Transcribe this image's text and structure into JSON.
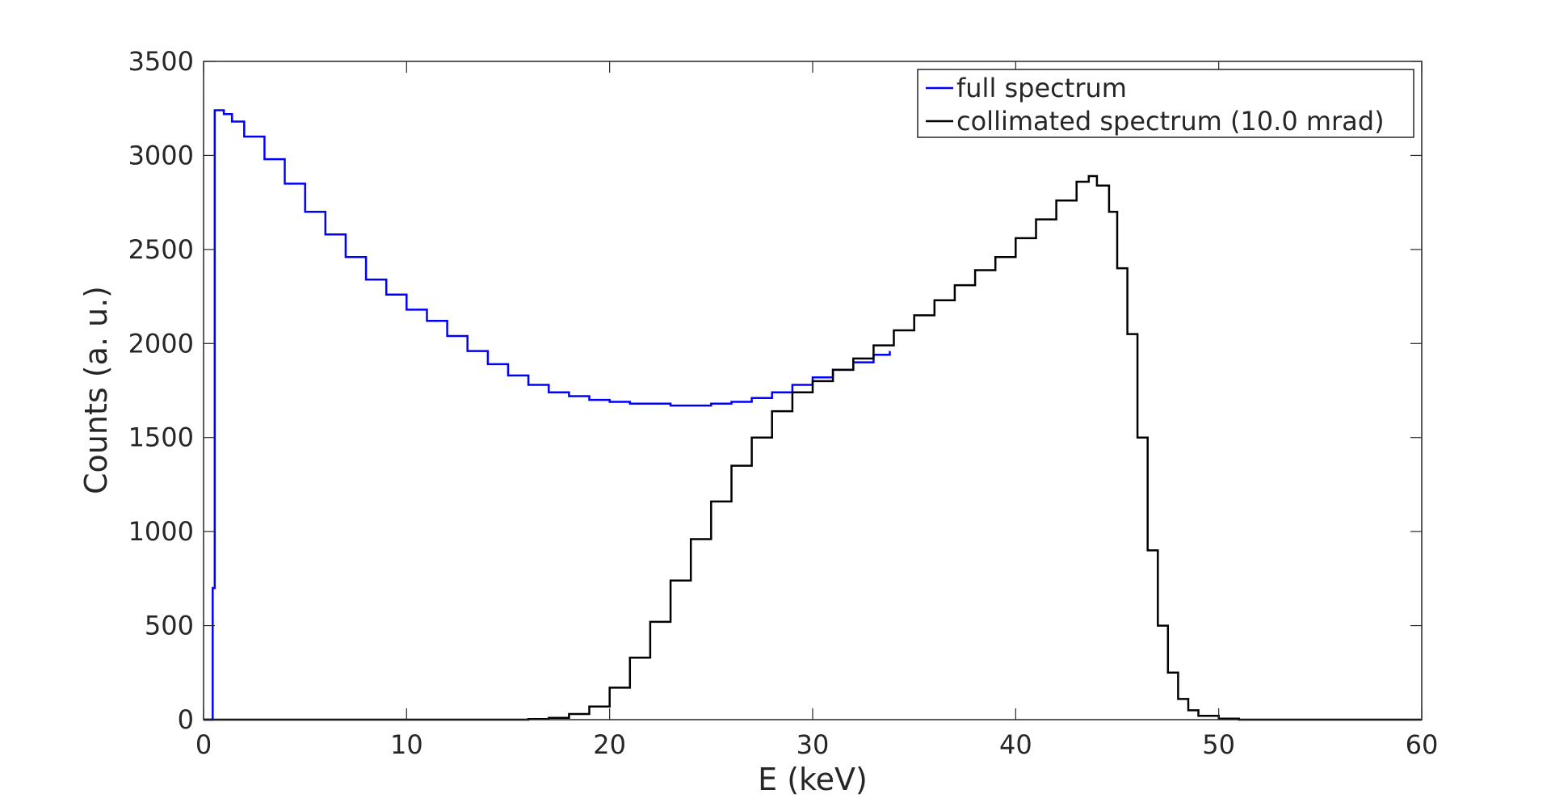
{
  "chart_data": {
    "type": "line",
    "title": "",
    "xlabel": "E (keV)",
    "ylabel": "Counts (a. u.)",
    "xlim": [
      0,
      60
    ],
    "ylim": [
      0,
      3500
    ],
    "xticks": [
      0,
      10,
      20,
      30,
      40,
      50,
      60
    ],
    "yticks": [
      0,
      500,
      1000,
      1500,
      2000,
      2500,
      3000,
      3500
    ],
    "grid": false,
    "legend_position": "top-right",
    "series": [
      {
        "name": "full spectrum",
        "color": "#0000ff",
        "style": "stairs",
        "points": [
          [
            0,
            0
          ],
          [
            0.4,
            0
          ],
          [
            0.45,
            700
          ],
          [
            0.55,
            3240
          ],
          [
            1.0,
            3220
          ],
          [
            1.4,
            3180
          ],
          [
            2.0,
            3100
          ],
          [
            3.0,
            2980
          ],
          [
            4.0,
            2850
          ],
          [
            5.0,
            2700
          ],
          [
            6.0,
            2580
          ],
          [
            7.0,
            2460
          ],
          [
            8.0,
            2340
          ],
          [
            9.0,
            2260
          ],
          [
            10.0,
            2180
          ],
          [
            11.0,
            2120
          ],
          [
            12.0,
            2040
          ],
          [
            13.0,
            1960
          ],
          [
            14.0,
            1890
          ],
          [
            15.0,
            1830
          ],
          [
            16.0,
            1780
          ],
          [
            17.0,
            1740
          ],
          [
            18.0,
            1720
          ],
          [
            19.0,
            1700
          ],
          [
            20.0,
            1690
          ],
          [
            21.0,
            1680
          ],
          [
            22.0,
            1680
          ],
          [
            23.0,
            1670
          ],
          [
            24.0,
            1670
          ],
          [
            25.0,
            1680
          ],
          [
            26.0,
            1690
          ],
          [
            27.0,
            1710
          ],
          [
            28.0,
            1740
          ],
          [
            29.0,
            1780
          ],
          [
            30.0,
            1820
          ],
          [
            31.0,
            1860
          ],
          [
            32.0,
            1900
          ],
          [
            33.0,
            1940
          ],
          [
            33.8,
            1960
          ]
        ]
      },
      {
        "name": "collimated spectrum (10.0 mrad)",
        "color": "#000000",
        "style": "stairs",
        "points": [
          [
            0,
            0
          ],
          [
            15.0,
            0
          ],
          [
            16.0,
            3
          ],
          [
            17.0,
            10
          ],
          [
            18.0,
            30
          ],
          [
            19.0,
            70
          ],
          [
            20.0,
            170
          ],
          [
            21.0,
            330
          ],
          [
            22.0,
            520
          ],
          [
            23.0,
            740
          ],
          [
            24.0,
            960
          ],
          [
            25.0,
            1160
          ],
          [
            26.0,
            1350
          ],
          [
            27.0,
            1500
          ],
          [
            28.0,
            1640
          ],
          [
            29.0,
            1740
          ],
          [
            30.0,
            1800
          ],
          [
            31.0,
            1860
          ],
          [
            32.0,
            1920
          ],
          [
            33.0,
            1990
          ],
          [
            34.0,
            2070
          ],
          [
            35.0,
            2150
          ],
          [
            36.0,
            2230
          ],
          [
            37.0,
            2310
          ],
          [
            38.0,
            2390
          ],
          [
            39.0,
            2460
          ],
          [
            40.0,
            2560
          ],
          [
            41.0,
            2660
          ],
          [
            42.0,
            2760
          ],
          [
            43.0,
            2860
          ],
          [
            43.6,
            2890
          ],
          [
            44.0,
            2840
          ],
          [
            44.6,
            2700
          ],
          [
            45.0,
            2400
          ],
          [
            45.5,
            2050
          ],
          [
            46.0,
            1500
          ],
          [
            46.5,
            900
          ],
          [
            47.0,
            500
          ],
          [
            47.5,
            250
          ],
          [
            48.0,
            110
          ],
          [
            48.5,
            50
          ],
          [
            49.0,
            20
          ],
          [
            50.0,
            5
          ],
          [
            51.0,
            0
          ],
          [
            60.0,
            0
          ]
        ]
      }
    ]
  }
}
